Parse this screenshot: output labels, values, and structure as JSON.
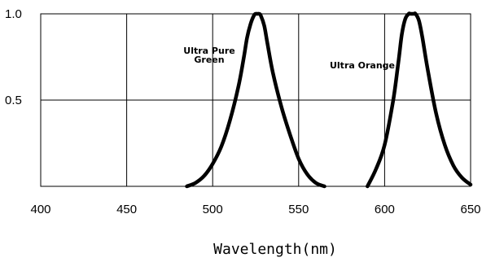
{
  "chart_data": {
    "type": "line",
    "title": "",
    "xlabel": "Wavelength(nm)",
    "ylabel": "",
    "xlim": [
      400,
      650
    ],
    "ylim": [
      0,
      1.0
    ],
    "x_ticks": [
      400,
      450,
      500,
      550,
      600,
      650
    ],
    "y_ticks": [
      0.5,
      1.0
    ],
    "x_tick_labels": [
      "400",
      "450",
      "500",
      "550",
      "600",
      "650"
    ],
    "y_tick_labels": [
      "0.5",
      "1.0"
    ],
    "grid": true,
    "series": [
      {
        "name": "Ultra Pure Green",
        "label_lines": [
          "Ultra Pure",
          "Green"
        ],
        "x": [
          485,
          490,
          495,
          500,
          505,
          510,
          515,
          518,
          520,
          522,
          524,
          525,
          526,
          527,
          528,
          530,
          532,
          535,
          540,
          545,
          550,
          555,
          560,
          565
        ],
        "y": [
          0.0,
          0.02,
          0.06,
          0.13,
          0.23,
          0.38,
          0.58,
          0.74,
          0.86,
          0.94,
          0.99,
          1.0,
          1.0,
          1.0,
          0.99,
          0.93,
          0.82,
          0.66,
          0.46,
          0.3,
          0.16,
          0.07,
          0.02,
          0.0
        ]
      },
      {
        "name": "Ultra Orange",
        "label_lines": [
          "Ultra Orange"
        ],
        "x": [
          590,
          595,
          600,
          605,
          608,
          610,
          612,
          614,
          615,
          617,
          618,
          620,
          622,
          625,
          630,
          635,
          640,
          645,
          650
        ],
        "y": [
          0.0,
          0.1,
          0.24,
          0.5,
          0.72,
          0.88,
          0.97,
          1.0,
          1.0,
          1.0,
          1.0,
          0.96,
          0.86,
          0.68,
          0.42,
          0.24,
          0.12,
          0.05,
          0.01
        ]
      }
    ]
  }
}
